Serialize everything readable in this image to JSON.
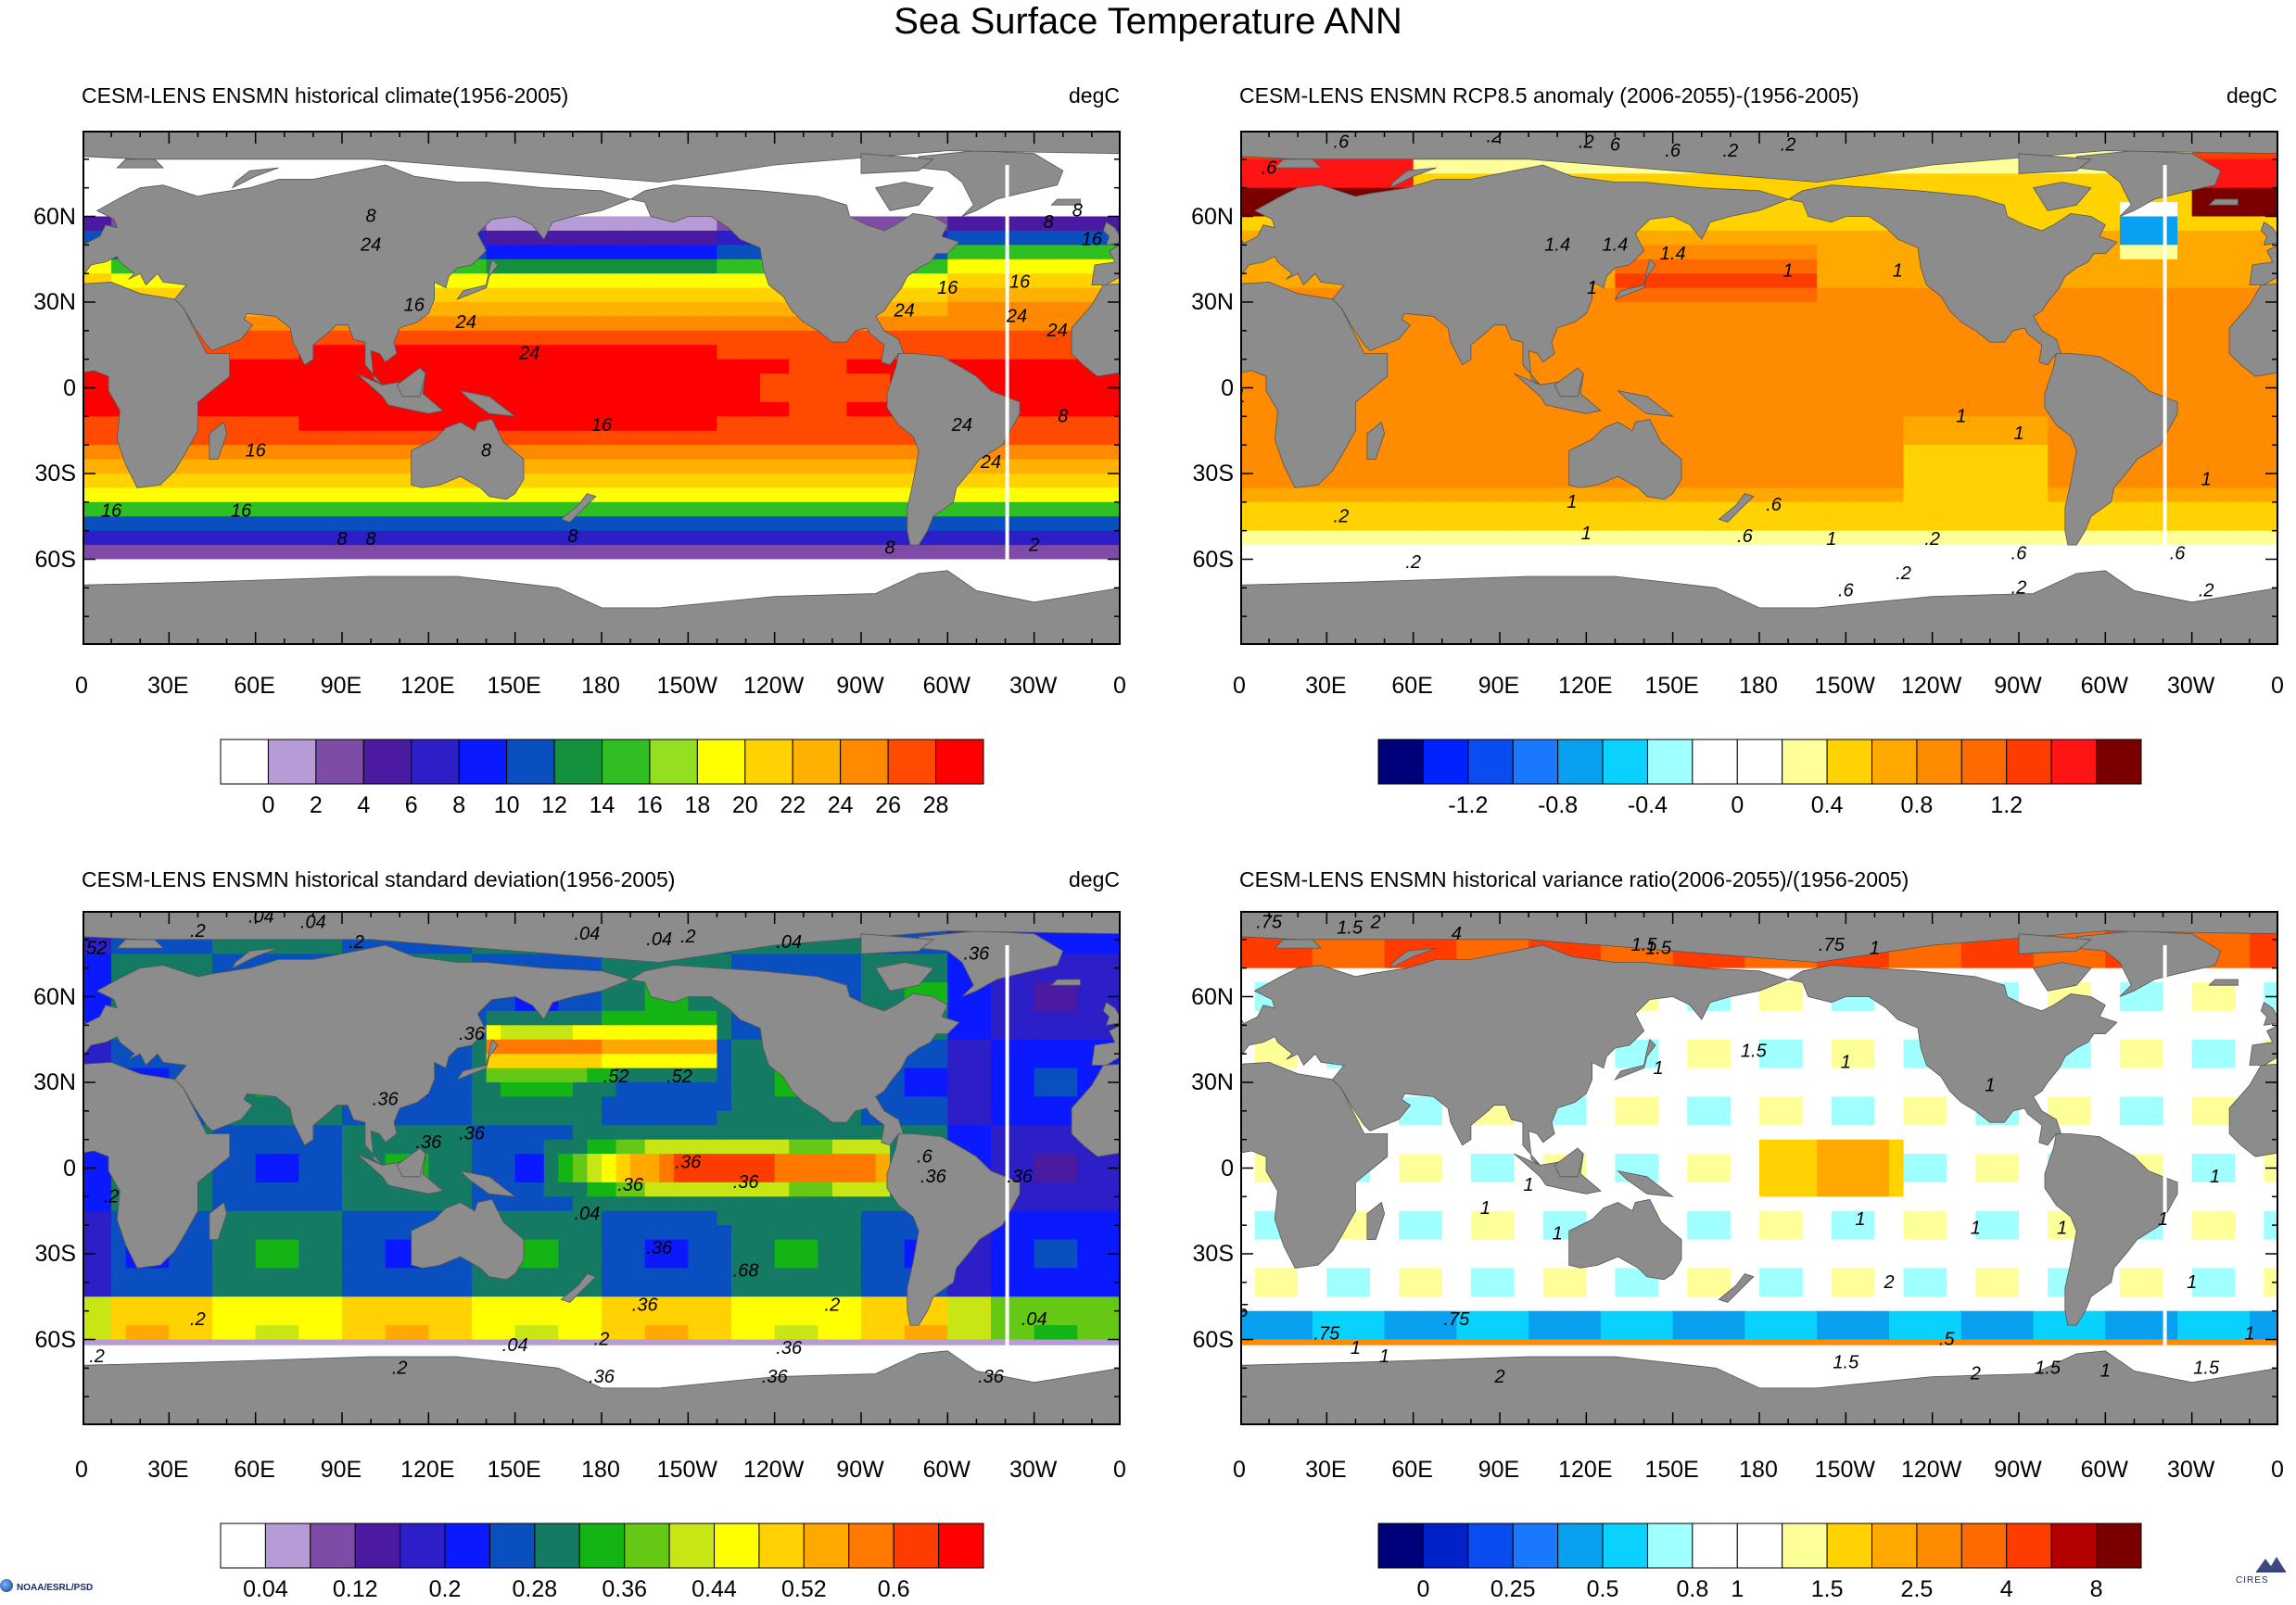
{
  "title": "Sea Surface Temperature ANN",
  "credit_left": "NOAA/ESRL/PSD",
  "credit_right": "CIRES",
  "lat_labels": [
    "60N",
    "30N",
    "0",
    "30S",
    "60S"
  ],
  "lon_labels": [
    "0",
    "30E",
    "60E",
    "90E",
    "120E",
    "150E",
    "180",
    "150W",
    "120W",
    "90W",
    "60W",
    "30W",
    "0"
  ],
  "colors": {
    "land": "#8c8c8c",
    "ice": "#ffffff",
    "frame": "#000000"
  },
  "panels": [
    {
      "id": "climate",
      "title": "CESM-LENS ENSMN historical climate(1956-2005)",
      "units": "degC",
      "colorbar": {
        "colors": [
          "#ffffff",
          "#b79bd6",
          "#7e4ba6",
          "#4a1aa0",
          "#2c1fc7",
          "#0a19ff",
          "#0a4fc0",
          "#14913c",
          "#2fbf22",
          "#93e022",
          "#ffff00",
          "#ffd200",
          "#ffb000",
          "#ff8a00",
          "#ff4a00",
          "#ff0000"
        ],
        "labels": [
          "0",
          "2",
          "4",
          "6",
          "8",
          "10",
          "12",
          "14",
          "16",
          "18",
          "20",
          "22",
          "24",
          "26",
          "28"
        ]
      },
      "contour_labels": [
        "8",
        "16",
        "24",
        "24",
        "24",
        "24",
        "16",
        "16",
        "8",
        "8",
        "24",
        "24",
        "24",
        "24",
        "16",
        "16",
        "16",
        "8",
        "8",
        "8",
        "8",
        "2",
        "16",
        "16",
        "8",
        "8"
      ]
    },
    {
      "id": "anomaly",
      "title": "CESM-LENS ENSMN RCP8.5 anomaly (2006-2055)-(1956-2005)",
      "units": "degC",
      "colorbar": {
        "colors": [
          "#00007a",
          "#0022ff",
          "#0a4cf0",
          "#1a78ff",
          "#0aa0f0",
          "#0ad2ff",
          "#a0ffff",
          "#ffffff",
          "#ffffff",
          "#ffff99",
          "#ffd200",
          "#ffa800",
          "#ff8c00",
          "#ff6a00",
          "#ff3c00",
          "#ff1414",
          "#7a0000"
        ],
        "labels": [
          "-1.2",
          "-0.8",
          "-0.4",
          "0",
          "0.4",
          "0.8",
          "1.2"
        ]
      },
      "contour_labels": [
        ".6",
        ".6",
        ".2",
        ".2",
        "6",
        ".6",
        ".2",
        ".2",
        "1.4",
        "1.4",
        "1.4",
        "1",
        "1",
        "1",
        "1",
        "1",
        "1",
        "1",
        ".6",
        ".6",
        "1",
        "1",
        ".6",
        ".6",
        ".2",
        ".2",
        ".2",
        ".6",
        ".2",
        ".2",
        ".2",
        "1"
      ]
    },
    {
      "id": "stddev",
      "title": "CESM-LENS ENSMN historical standard deviation(1956-2005)",
      "units": "degC",
      "colorbar": {
        "colors": [
          "#ffffff",
          "#b79bd6",
          "#7e4ba6",
          "#4a1aa0",
          "#2c1fc7",
          "#0a19ff",
          "#0a4fc0",
          "#147a64",
          "#14b414",
          "#64c814",
          "#c8e614",
          "#ffff00",
          "#ffd200",
          "#ffa800",
          "#ff7800",
          "#ff3c00",
          "#ff0000"
        ],
        "labels": [
          "0.04",
          "0.12",
          "0.2",
          "0.28",
          "0.36",
          "0.44",
          "0.52",
          "0.6"
        ]
      },
      "contour_labels": [
        ".2",
        ".04",
        ".04",
        ".2",
        ".04",
        ".04",
        ".2",
        ".04",
        ".52",
        ".36",
        ".36",
        ".52",
        ".52",
        ".36",
        ".36",
        ".36",
        ".36",
        ".36",
        ".68",
        ".6",
        ".36",
        ".36",
        ".36",
        ".36",
        ".2",
        ".36",
        ".36",
        ".36",
        ".36",
        ".2",
        ".2",
        ".04",
        ".2",
        ".04",
        ".2",
        ".04",
        ".2",
        ".36"
      ]
    },
    {
      "id": "varratio",
      "title": "CESM-LENS ENSMN historical variance ratio(2006-2055)/(1956-2005)",
      "units": "",
      "colorbar": {
        "colors": [
          "#00007a",
          "#0022c8",
          "#0a4cf0",
          "#1a78ff",
          "#0aa0f0",
          "#0ad2ff",
          "#a0ffff",
          "#ffffff",
          "#ffffff",
          "#ffff99",
          "#ffd200",
          "#ffa800",
          "#ff8c00",
          "#ff6a00",
          "#ff3c00",
          "#b40000",
          "#7a0000"
        ],
        "labels": [
          "0",
          "0.25",
          "0.5",
          "0.8",
          "1",
          "1.5",
          "2.5",
          "4",
          "8"
        ]
      },
      "contour_labels": [
        ".75",
        "1.5",
        "2",
        "4",
        "1.5",
        "1.5",
        ".75",
        "1",
        "1",
        "1.5",
        "1",
        "1",
        "1",
        "1",
        "1",
        "1",
        "1",
        "1",
        "1",
        "1",
        ".75",
        "1",
        "1",
        ".75",
        "2",
        "1.5",
        "2",
        "1.5",
        "1",
        "1.5",
        "2",
        ".5",
        "1",
        ".5",
        "1"
      ]
    }
  ]
}
